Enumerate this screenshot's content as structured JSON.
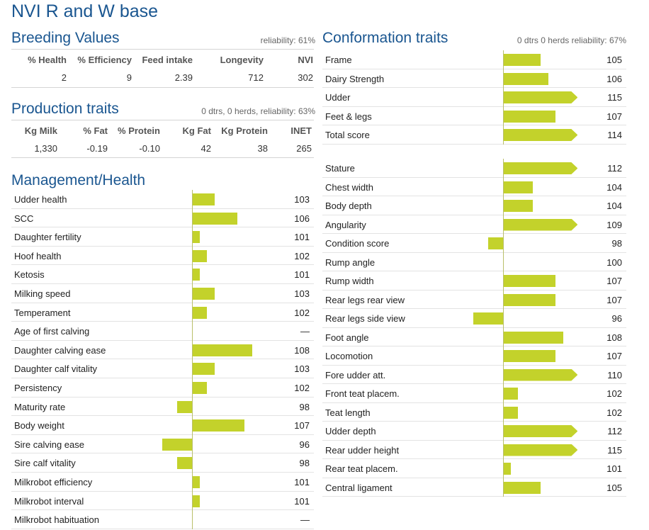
{
  "title": "NVI R and W base",
  "colors": {
    "accent": "#1a5690",
    "bar": "#c3d22b"
  },
  "breeding": {
    "title": "Breeding Values",
    "meta": "reliability: 61%",
    "headers": [
      "% Health",
      "% Efficiency",
      "Feed intake",
      "Longevity",
      "NVI"
    ],
    "values": [
      "2",
      "9",
      "2.39",
      "712",
      "302"
    ]
  },
  "production": {
    "title": "Production traits",
    "meta": "0 dtrs, 0 herds, reliability: 63%",
    "headers": [
      "Kg Milk",
      "% Fat",
      "% Protein",
      "Kg Fat",
      "Kg Protein",
      "INET"
    ],
    "values": [
      "1,330",
      "-0.19",
      "-0.10",
      "42",
      "38",
      "265"
    ]
  },
  "management": {
    "title": "Management/Health",
    "rows": [
      {
        "label": "Udder health",
        "value": "103"
      },
      {
        "label": "SCC",
        "value": "106"
      },
      {
        "label": "Daughter fertility",
        "value": "101"
      },
      {
        "label": "Hoof health",
        "value": "102"
      },
      {
        "label": "Ketosis",
        "value": "101"
      },
      {
        "label": "Milking speed",
        "value": "103"
      },
      {
        "label": "Temperament",
        "value": "102"
      },
      {
        "label": "Age of first calving",
        "value": "—"
      },
      {
        "label": "Daughter calving ease",
        "value": "108"
      },
      {
        "label": "Daughter calf vitality",
        "value": "103"
      },
      {
        "label": "Persistency",
        "value": "102"
      },
      {
        "label": "Maturity rate",
        "value": "98"
      },
      {
        "label": "Body weight",
        "value": "107"
      },
      {
        "label": "Sire calving ease",
        "value": "96"
      },
      {
        "label": "Sire calf vitality",
        "value": "98"
      },
      {
        "label": "Milkrobot efficiency",
        "value": "101"
      },
      {
        "label": "Milkrobot interval",
        "value": "101"
      },
      {
        "label": "Milkrobot habituation",
        "value": "—"
      }
    ]
  },
  "conformation": {
    "title": "Conformation traits",
    "meta": "0 dtrs 0 herds reliability: 67%",
    "summary": [
      {
        "label": "Frame",
        "value": "105"
      },
      {
        "label": "Dairy Strength",
        "value": "106"
      },
      {
        "label": "Udder",
        "value": "115"
      },
      {
        "label": "Feet & legs",
        "value": "107"
      },
      {
        "label": "Total score",
        "value": "114"
      }
    ],
    "linear": [
      {
        "label": "Stature",
        "value": "112"
      },
      {
        "label": "Chest width",
        "value": "104"
      },
      {
        "label": "Body depth",
        "value": "104"
      },
      {
        "label": "Angularity",
        "value": "109"
      },
      {
        "label": "Condition score",
        "value": "98"
      },
      {
        "label": "Rump angle",
        "value": "100"
      },
      {
        "label": "Rump width",
        "value": "107"
      },
      {
        "label": "Rear legs rear view",
        "value": "107"
      },
      {
        "label": "Rear legs side view",
        "value": "96"
      },
      {
        "label": "Foot angle",
        "value": "108"
      },
      {
        "label": "Locomotion",
        "value": "107"
      },
      {
        "label": "Fore udder att.",
        "value": "110"
      },
      {
        "label": "Front teat placem.",
        "value": "102"
      },
      {
        "label": "Teat length",
        "value": "102"
      },
      {
        "label": "Udder depth",
        "value": "112"
      },
      {
        "label": "Rear udder height",
        "value": "115"
      },
      {
        "label": "Rear teat placem.",
        "value": "101"
      },
      {
        "label": "Central ligament",
        "value": "105"
      }
    ]
  }
}
